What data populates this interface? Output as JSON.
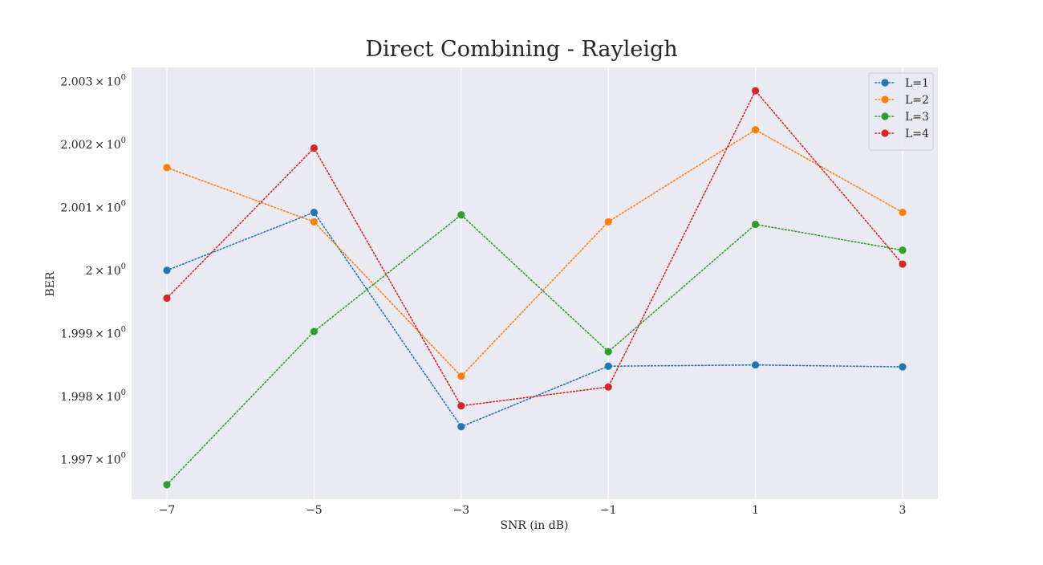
{
  "chart_data": {
    "type": "line",
    "title": "Direct Combining - Rayleigh",
    "xlabel": "SNR (in dB)",
    "ylabel": "BER",
    "x": [
      -7,
      -5,
      -3,
      -1,
      1,
      3
    ],
    "xticks": [
      -7,
      -5,
      -3,
      -1,
      1,
      3
    ],
    "xtick_labels": [
      "−7",
      "−5",
      "−3",
      "−1",
      "1",
      "3"
    ],
    "xlim": [
      -7.48,
      3.48
    ],
    "ylim": [
      1.99637,
      2.00322
    ],
    "yticks": [
      1.997,
      1.998,
      1.999,
      2.0,
      2.001,
      2.002,
      2.003
    ],
    "ytick_labels": [
      {
        "mantissa": "1.997",
        "exp": "0"
      },
      {
        "mantissa": "1.998",
        "exp": "0"
      },
      {
        "mantissa": "1.999",
        "exp": "0"
      },
      {
        "mantissa": "2",
        "exp": "0"
      },
      {
        "mantissa": "2.001",
        "exp": "0"
      },
      {
        "mantissa": "2.002",
        "exp": "0"
      },
      {
        "mantissa": "2.003",
        "exp": "0"
      }
    ],
    "grid": true,
    "line_style": "dotted",
    "marker": "circle",
    "legend_position": "top-right",
    "series": [
      {
        "name": "L=1",
        "color": "#1f77b4",
        "values": [
          2.0,
          2.00092,
          1.99752,
          1.99848,
          1.9985,
          1.99847
        ]
      },
      {
        "name": "L=2",
        "color": "#ff7f0e",
        "values": [
          2.00163,
          2.00077,
          1.99832,
          2.00077,
          2.00223,
          2.00092
        ]
      },
      {
        "name": "L=3",
        "color": "#2ca02c",
        "values": [
          1.9966,
          1.99903,
          2.00088,
          1.99871,
          2.00073,
          2.00032
        ]
      },
      {
        "name": "L=4",
        "color": "#d62728",
        "values": [
          1.99956,
          2.00194,
          1.99785,
          1.99815,
          2.00285,
          2.0001
        ]
      }
    ]
  },
  "colors": {
    "plot_background": "#eaeaf2",
    "grid": "#ffffff",
    "text": "#262626",
    "legend_border": "#cccccc"
  }
}
